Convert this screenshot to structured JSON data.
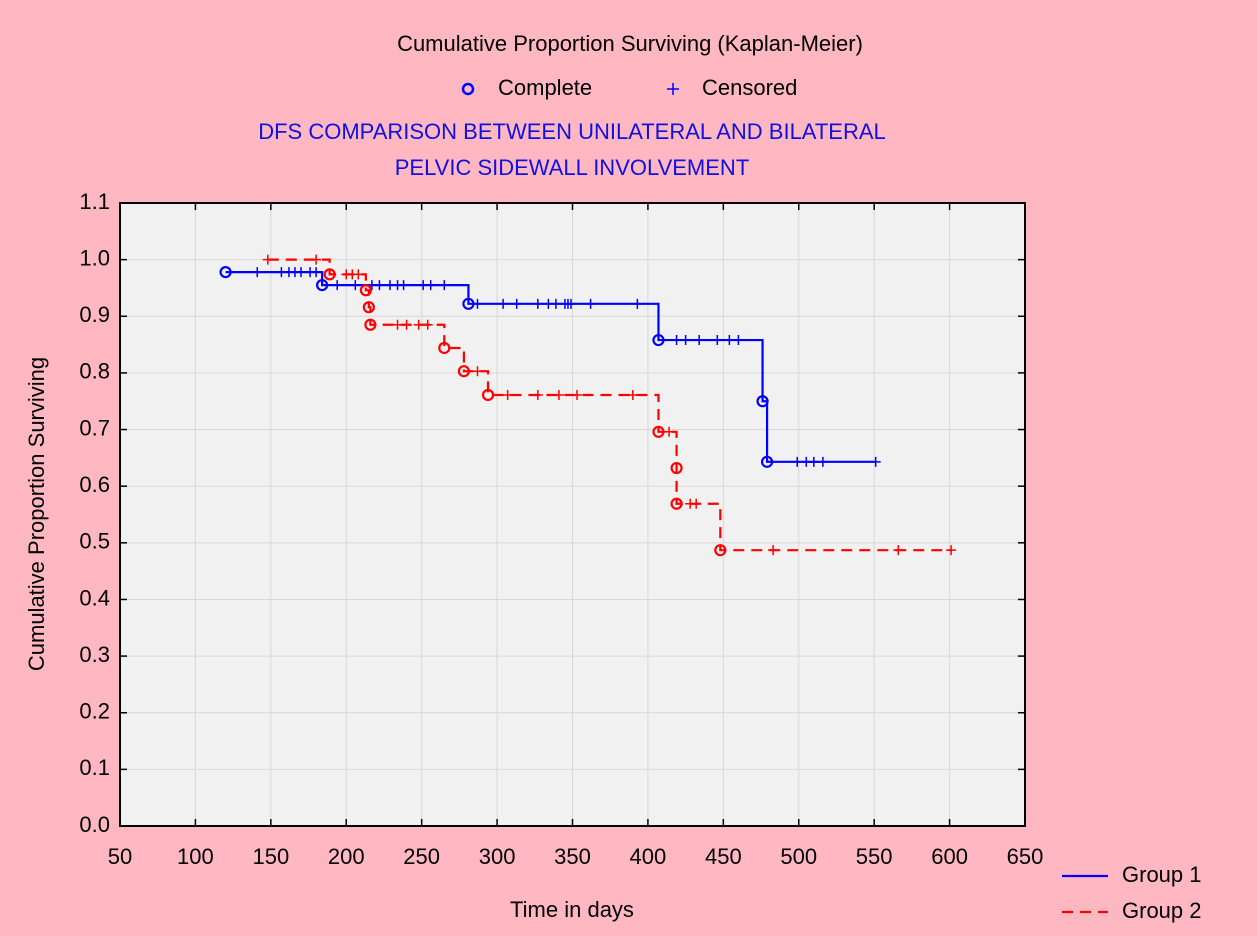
{
  "chart_data": {
    "type": "kaplan-meier",
    "title": "Cumulative Proportion Surviving (Kaplan-Meier)",
    "marker_legend": {
      "complete": "Complete",
      "censored": "Censored"
    },
    "subtitle": [
      "DFS COMPARISON BETWEEN UNILATERAL AND BILATERAL",
      "PELVIC SIDEWALL INVOLVEMENT"
    ],
    "x_label": "Time in days",
    "y_label": "Cumulative Proportion Surviving",
    "xlim": [
      50,
      650
    ],
    "xticks": [
      50,
      100,
      150,
      200,
      250,
      300,
      350,
      400,
      450,
      500,
      550,
      600,
      650
    ],
    "ylim": [
      0,
      1.1
    ],
    "yticks": [
      {
        "value": 0,
        "label": "0.0"
      },
      0.1,
      0.2,
      0.3,
      0.4,
      0.5,
      0.6,
      0.7,
      0.8,
      0.9,
      {
        "value": 1,
        "label": "1.0"
      },
      1.1
    ],
    "grid": true,
    "legend": "bottom-right",
    "series": [
      {
        "name": "Group 1",
        "color": "#0000ff",
        "dashed": false,
        "x": [
          120,
          141,
          157,
          162,
          166,
          170,
          176,
          180,
          184,
          194,
          206,
          217,
          222,
          229,
          234,
          238,
          251,
          256,
          265,
          281,
          287,
          304,
          313,
          327,
          334,
          339,
          345,
          347,
          349,
          362,
          393,
          407,
          419,
          425,
          434,
          446,
          454,
          460,
          476,
          479,
          499,
          505,
          510,
          516,
          551
        ],
        "values": [
          0.978,
          0.978,
          0.978,
          0.978,
          0.978,
          0.978,
          0.978,
          0.978,
          0.955,
          0.955,
          0.955,
          0.955,
          0.955,
          0.955,
          0.955,
          0.955,
          0.955,
          0.955,
          0.955,
          0.922,
          0.922,
          0.922,
          0.922,
          0.922,
          0.922,
          0.922,
          0.922,
          0.922,
          0.922,
          0.922,
          0.922,
          0.858,
          0.858,
          0.858,
          0.858,
          0.858,
          0.858,
          0.858,
          0.75,
          0.643,
          0.643,
          0.643,
          0.643,
          0.643,
          0.643
        ],
        "marker": [
          "o",
          "+",
          "+",
          "+",
          "+",
          "+",
          "+",
          "+",
          "o",
          "+",
          "+",
          "+",
          "+",
          "+",
          "+",
          "+",
          "+",
          "+",
          "+",
          "o",
          "+",
          "+",
          "+",
          "+",
          "+",
          "+",
          "+",
          "+",
          "+",
          "+",
          "+",
          "o",
          "+",
          "+",
          "+",
          "+",
          "+",
          "+",
          "o",
          "o",
          "+",
          "+",
          "+",
          "+",
          "+"
        ]
      },
      {
        "name": "Group 2",
        "color": "#ff0000",
        "dashed": true,
        "x": [
          148,
          180,
          189,
          200,
          204,
          208,
          213,
          215,
          216,
          234,
          240,
          248,
          254,
          265,
          278,
          287,
          294,
          307,
          327,
          341,
          353,
          390,
          407,
          414,
          419,
          419,
          428,
          432,
          448,
          483,
          566,
          601
        ],
        "values": [
          1.0,
          1.0,
          0.974,
          0.974,
          0.974,
          0.974,
          0.946,
          0.916,
          0.885,
          0.885,
          0.885,
          0.885,
          0.885,
          0.844,
          0.803,
          0.803,
          0.761,
          0.761,
          0.761,
          0.761,
          0.761,
          0.761,
          0.696,
          0.696,
          0.632,
          0.569,
          0.569,
          0.569,
          0.487,
          0.487,
          0.487,
          0.487
        ],
        "marker": [
          "+",
          "+",
          "o",
          "+",
          "+",
          "+",
          "o",
          "o",
          "o",
          "+",
          "+",
          "+",
          "+",
          "o",
          "o",
          "+",
          "o",
          "+",
          "+",
          "+",
          "+",
          "+",
          "o",
          "+",
          "o",
          "o",
          "+",
          "+",
          "o",
          "+",
          "+",
          "+"
        ]
      }
    ]
  }
}
